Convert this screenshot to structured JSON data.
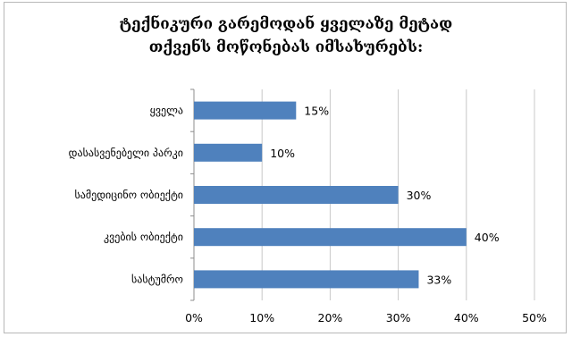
{
  "chart_data": {
    "type": "bar",
    "orientation": "horizontal",
    "title_lines": [
      "ტექნიკური გარემოდან ყველაზე მეტად",
      "თქვენს მოწონებას იმსახურებს:"
    ],
    "categories": [
      "ყველა",
      "დასასვენებელი პარკი",
      "სამედიცინო ობიექტი",
      "კვების ობიექტი",
      "სასტუმრო"
    ],
    "values": [
      15,
      10,
      30,
      40,
      33
    ],
    "data_labels": [
      "15%",
      "10%",
      "30%",
      "40%",
      "33%"
    ],
    "xlim": [
      0,
      50
    ],
    "x_ticks": [
      0,
      10,
      20,
      30,
      40,
      50
    ],
    "x_tick_labels": [
      "0%",
      "10%",
      "20%",
      "30%",
      "40%",
      "50%"
    ],
    "xlabel": "",
    "ylabel": "",
    "grid": "vertical",
    "legend": "none",
    "bar_color": "#4f81bd"
  }
}
